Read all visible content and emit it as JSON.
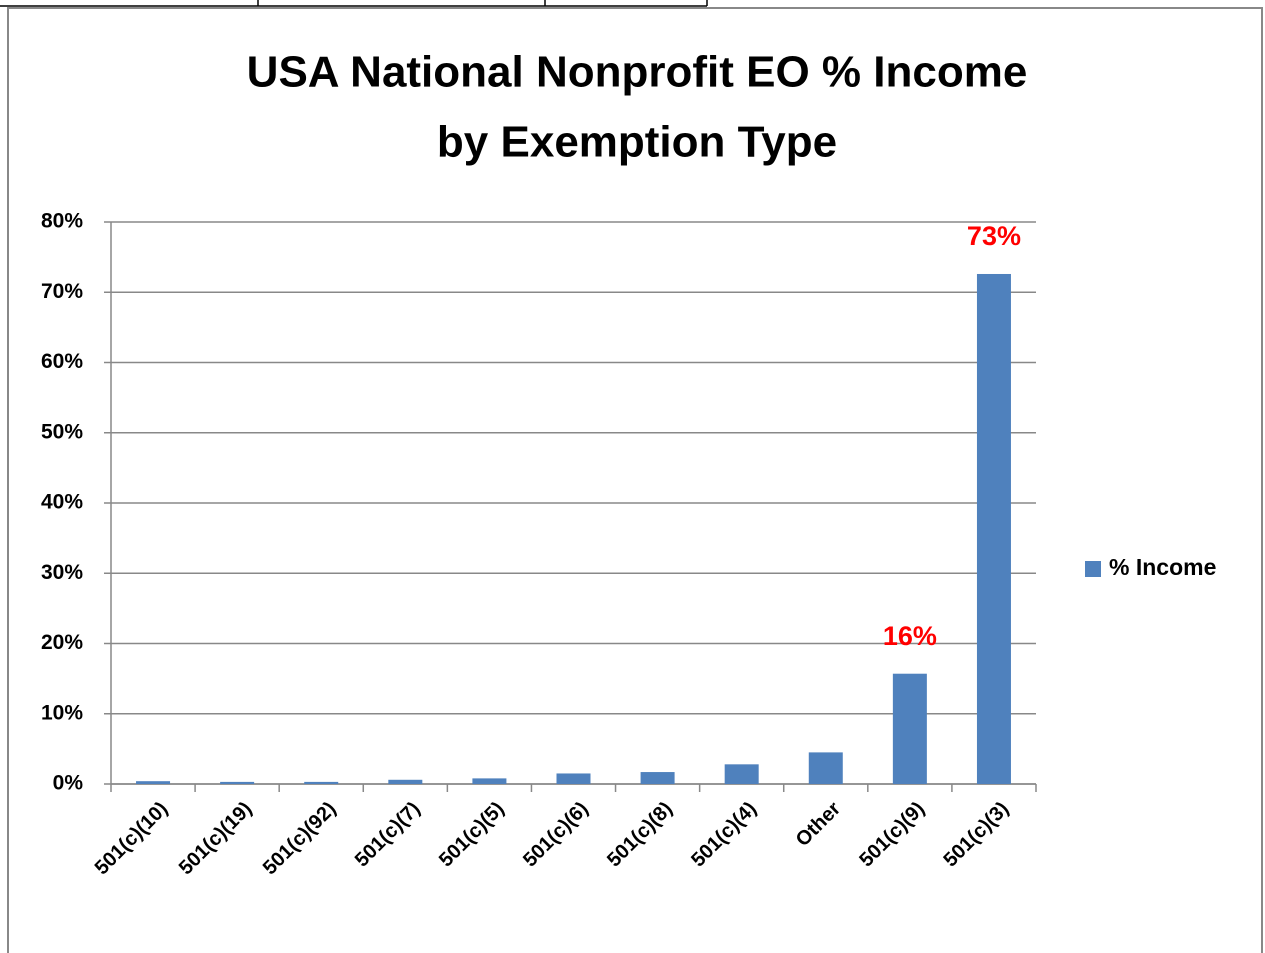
{
  "chart_data": {
    "type": "bar",
    "title": "USA National Nonprofit EO % Income",
    "subtitle": "by Exemption Type",
    "categories": [
      "501(c)(10)",
      "501(c)(19)",
      "501(c)(92)",
      "501(c)(7)",
      "501(c)(5)",
      "501(c)(6)",
      "501(c)(8)",
      "501(c)(4)",
      "Other",
      "501(c)(9)",
      "501(c)(3)"
    ],
    "series": [
      {
        "name": "% Income",
        "color": "#4f81bd",
        "values": [
          0.4,
          0.3,
          0.3,
          0.6,
          0.8,
          1.5,
          1.7,
          2.8,
          4.5,
          15.7,
          72.6
        ],
        "value_labels": [
          null,
          null,
          null,
          null,
          null,
          null,
          null,
          null,
          null,
          "16%",
          "73%"
        ],
        "label_color": "#ff0000"
      }
    ],
    "ylim": [
      0,
      80
    ],
    "yticks": [
      {
        "value": 0,
        "label": "0%"
      },
      {
        "value": 10,
        "label": "10%"
      },
      {
        "value": 20,
        "label": "20%"
      },
      {
        "value": 30,
        "label": "30%"
      },
      {
        "value": 40,
        "label": "40%"
      },
      {
        "value": 50,
        "label": "50%"
      },
      {
        "value": 60,
        "label": "60%"
      },
      {
        "value": 70,
        "label": "70%"
      },
      {
        "value": 80,
        "label": "80%"
      }
    ],
    "grid": true,
    "legend": "right"
  }
}
